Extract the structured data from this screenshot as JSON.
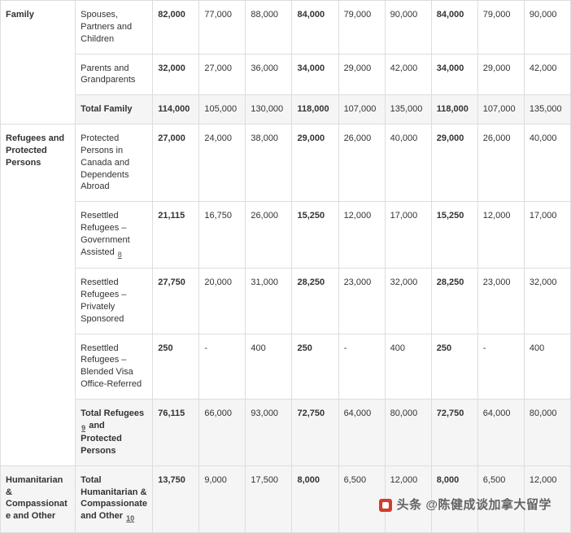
{
  "categories": [
    {
      "name": "Family",
      "rows": [
        {
          "label": "Spouses, Partners and Children",
          "bold": false,
          "values": [
            "82,000",
            "77,000",
            "88,000",
            "84,000",
            "79,000",
            "90,000",
            "84,000",
            "79,000",
            "90,000"
          ],
          "bold_cols": [
            0,
            3,
            6
          ]
        },
        {
          "label": "Parents and Grandparents",
          "bold": false,
          "values": [
            "32,000",
            "27,000",
            "36,000",
            "34,000",
            "29,000",
            "42,000",
            "34,000",
            "29,000",
            "42,000"
          ],
          "bold_cols": [
            0,
            3,
            6
          ]
        },
        {
          "label": "Total Family",
          "bold": true,
          "is_total": true,
          "values": [
            "114,000",
            "105,000",
            "130,000",
            "118,000",
            "107,000",
            "135,000",
            "118,000",
            "107,000",
            "135,000"
          ],
          "bold_cols": [
            0,
            3,
            6
          ]
        }
      ]
    },
    {
      "name": "Refugees and Protected Persons",
      "rows": [
        {
          "label": "Protected Persons in Canada and Dependents Abroad",
          "bold": false,
          "values": [
            "27,000",
            "24,000",
            "38,000",
            "29,000",
            "26,000",
            "40,000",
            "29,000",
            "26,000",
            "40,000"
          ],
          "bold_cols": [
            0,
            3,
            6
          ]
        },
        {
          "label": "Resettled Refugees – Government Assisted",
          "bold": false,
          "footnote": "8",
          "values": [
            "21,115",
            "16,750",
            "26,000",
            "15,250",
            "12,000",
            "17,000",
            "15,250",
            "12,000",
            "17,000"
          ],
          "bold_cols": [
            0,
            3,
            6
          ]
        },
        {
          "label": "Resettled Refugees – Privately Sponsored",
          "bold": false,
          "values": [
            "27,750",
            "20,000",
            "31,000",
            "28,250",
            "23,000",
            "32,000",
            "28,250",
            "23,000",
            "32,000"
          ],
          "bold_cols": [
            0,
            3,
            6
          ]
        },
        {
          "label": "Resettled Refugees – Blended Visa Office-Referred",
          "bold": false,
          "values": [
            "250",
            "-",
            "400",
            "250",
            "-",
            "400",
            "250",
            "-",
            "400"
          ],
          "bold_cols": [
            0,
            3,
            6
          ]
        },
        {
          "label_parts": [
            "Total Refugees",
            " and Protected Persons"
          ],
          "footnote": "9",
          "bold": true,
          "is_total": true,
          "values": [
            "76,115",
            "66,000",
            "93,000",
            "72,750",
            "64,000",
            "80,000",
            "72,750",
            "64,000",
            "80,000"
          ],
          "bold_cols": [
            0,
            3,
            6
          ]
        }
      ]
    },
    {
      "name": "Humanitarian & Compassionate and Other",
      "rows": [
        {
          "label_parts": [
            "Total Humanitarian & Compassionate and Other"
          ],
          "footnote": "10",
          "bold": true,
          "is_total": true,
          "values": [
            "13,750",
            "9,000",
            "17,500",
            "8,000",
            "6,500",
            "12,000",
            "8,000",
            "6,500",
            "12,000"
          ],
          "bold_cols": [
            0,
            3,
            6
          ]
        }
      ]
    }
  ],
  "watermark_prefix": "头条",
  "watermark_text": "@陈健成谈加拿大留学"
}
